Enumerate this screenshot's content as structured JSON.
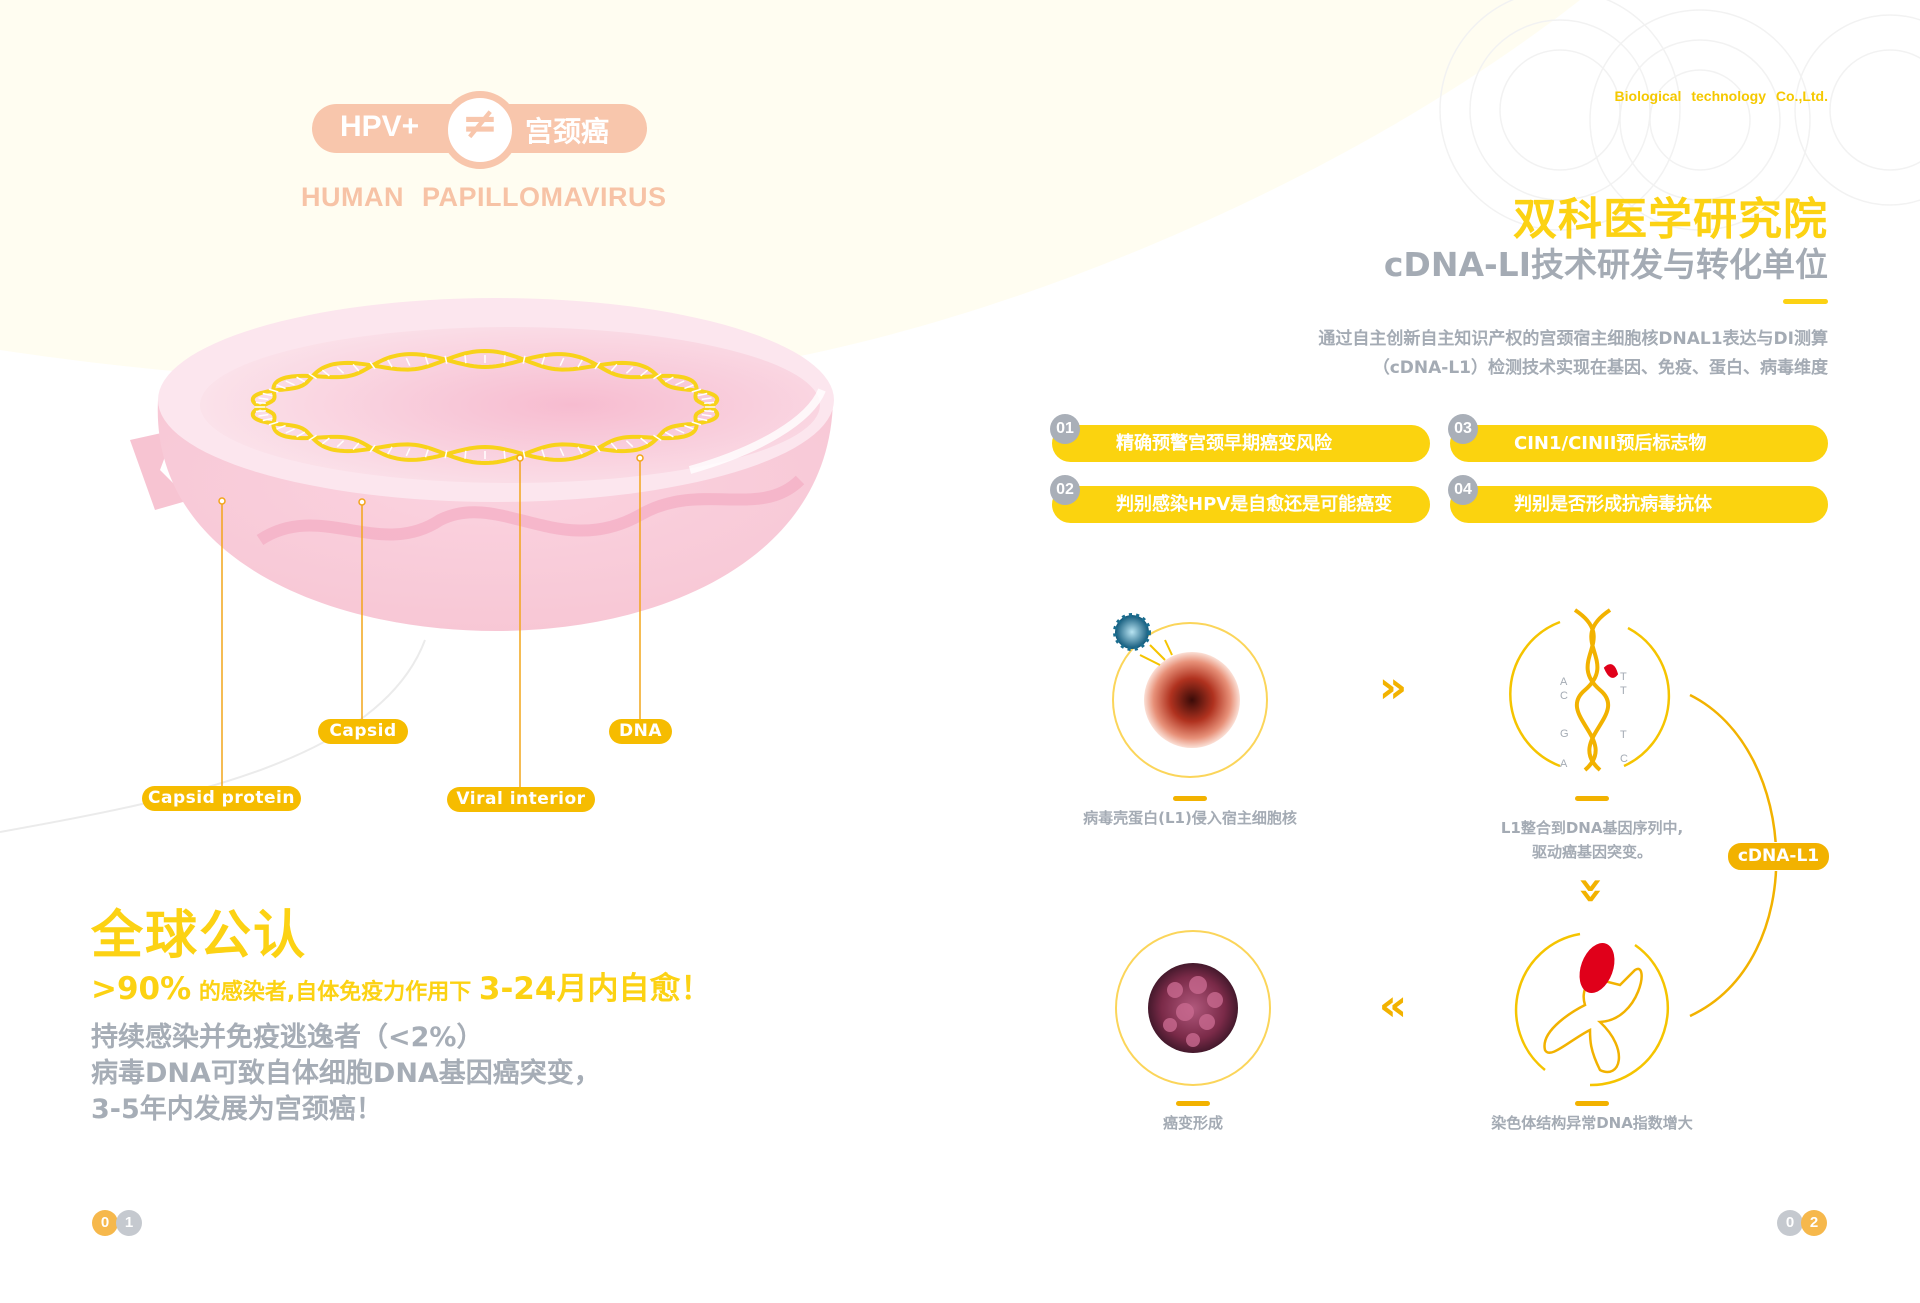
{
  "colors": {
    "brand_yellow": "#fcd213",
    "accent_orange": "#f2b200",
    "peach": "#f8c6ac",
    "gray_text": "#a4abb4",
    "cream_bg": "#fffdf2",
    "dish_pink": "#f7c8d6"
  },
  "left_page": {
    "badge": {
      "left": "HPV+",
      "symbol": "≠",
      "right": "宫颈癌"
    },
    "subtitle": "HUMAN PAPILLOMAVIRUS",
    "labels": {
      "capsid": "Capsid",
      "dna": "DNA",
      "capsid_protein": "Capsid protein",
      "viral_interior": "Viral interior"
    },
    "headline": "全球公认",
    "stat": {
      "percent": ">90%",
      "middle": " 的感染者,自体免疫力作用下 ",
      "period": "3-24月内自愈！"
    },
    "lines": [
      "持续感染并免疫逃逸者（<2%）",
      "病毒DNA可致自体细胞DNA基因癌突变，",
      "3-5年内发展为宫颈癌！"
    ],
    "page_number": [
      "0",
      "1"
    ]
  },
  "right_page": {
    "company": "Biological  technology Co.,Ltd.",
    "title": "双科医学研究院",
    "subtitle": "cDNA-LI技术研发与转化单位",
    "paragraph": [
      "通过自主创新自主知识产权的宫颈宿主细胞核DNAL1表达与DI测算",
      "（cDNA-L1）检测技术实现在基因、免疫、蛋白、病毒维度"
    ],
    "features": [
      {
        "num": "01",
        "text": "精确预警宫颈早期癌变风险"
      },
      {
        "num": "02",
        "text": "判别感染HPV是自愈还是可能癌变"
      },
      {
        "num": "03",
        "text": "CIN1/CINII预后标志物"
      },
      {
        "num": "04",
        "text": "判别是否形成抗病毒抗体"
      }
    ],
    "steps": [
      {
        "caption": "病毒壳蛋白(L1)侵入宿主细胞核",
        "icon": "virus-cell-icon"
      },
      {
        "caption": "L1整合到DNA基因序列中,\n驱动癌基因突变。",
        "icon": "dna-helix-icon",
        "bases": [
          "A",
          "C",
          "T",
          "T",
          "G",
          "T",
          "A",
          "C"
        ]
      },
      {
        "caption": "染色体结构异常DNA指数增大",
        "icon": "chromosome-icon"
      },
      {
        "caption": "癌变形成",
        "icon": "tumor-cell-icon"
      }
    ],
    "arrows": {
      "right": "»",
      "down": "»",
      "left": "«"
    },
    "cycle_label": "cDNA-L1",
    "page_number": [
      "0",
      "2"
    ]
  }
}
